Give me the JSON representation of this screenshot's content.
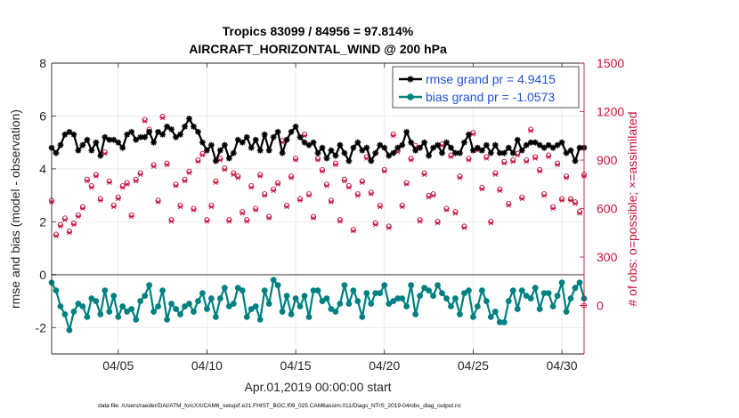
{
  "chart_data": {
    "type": "line",
    "title": "Tropics 83099 / 84956 = 97.814%",
    "subtitle": "AIRCRAFT_HORIZONTAL_WIND @ 200 hPa",
    "xlabel": "Apr.01,2019 00:00:00 start",
    "ylabel_left": "rmse and bias (model - observation)",
    "ylabel_right": "# of obs: o=possible; ×=assimilated",
    "footer": "data file: /Users/raeder/DAI/ATM_forcXX/CAM6_setup/f.e21.FHIST_BGC.f09_025.CAM6assim.011/Diags_NTrS_2019-04/obs_diag_output.nc",
    "x_tick_labels": [
      "04/05",
      "04/10",
      "04/15",
      "04/20",
      "04/25",
      "04/30"
    ],
    "x_tick_days": [
      5,
      10,
      15,
      20,
      25,
      30
    ],
    "xlim": [
      1.25,
      31.25
    ],
    "ylim_left": [
      -3,
      8
    ],
    "yticks_left": [
      -2,
      0,
      2,
      4,
      6,
      8
    ],
    "ylim_right": [
      -300,
      1500
    ],
    "yticks_right": [
      0,
      300,
      600,
      900,
      1200,
      1500
    ],
    "grid": true,
    "legend_position": "top-right",
    "x_days": [
      1.25,
      1.5,
      1.75,
      2.0,
      2.25,
      2.5,
      2.75,
      3.0,
      3.25,
      3.5,
      3.75,
      4.0,
      4.25,
      4.5,
      4.75,
      5.0,
      5.25,
      5.5,
      5.75,
      6.0,
      6.25,
      6.5,
      6.75,
      7.0,
      7.25,
      7.5,
      7.75,
      8.0,
      8.25,
      8.5,
      8.75,
      9.0,
      9.25,
      9.5,
      9.75,
      10.0,
      10.25,
      10.5,
      10.75,
      11.0,
      11.25,
      11.5,
      11.75,
      12.0,
      12.25,
      12.5,
      12.75,
      13.0,
      13.25,
      13.5,
      13.75,
      14.0,
      14.25,
      14.5,
      14.75,
      15.0,
      15.25,
      15.5,
      15.75,
      16.0,
      16.25,
      16.5,
      16.75,
      17.0,
      17.25,
      17.5,
      17.75,
      18.0,
      18.25,
      18.5,
      18.75,
      19.0,
      19.25,
      19.5,
      19.75,
      20.0,
      20.25,
      20.5,
      20.75,
      21.0,
      21.25,
      21.5,
      21.75,
      22.0,
      22.25,
      22.5,
      22.75,
      23.0,
      23.25,
      23.5,
      23.75,
      24.0,
      24.25,
      24.5,
      24.75,
      25.0,
      25.25,
      25.5,
      25.75,
      26.0,
      26.25,
      26.5,
      26.75,
      27.0,
      27.25,
      27.5,
      27.75,
      28.0,
      28.25,
      28.5,
      28.75,
      29.0,
      29.25,
      29.5,
      29.75,
      30.0,
      30.25,
      30.5,
      30.75,
      31.0,
      31.25
    ],
    "series": [
      {
        "name": "rmse grand pr = 4.9415",
        "axis": "left",
        "color": "#000000",
        "marker": "asterisk",
        "values": [
          4.8,
          4.6,
          4.9,
          5.3,
          5.4,
          5.3,
          4.7,
          4.9,
          5.1,
          4.7,
          5.0,
          4.5,
          5.2,
          5.1,
          5.1,
          5.0,
          4.8,
          5.3,
          5.4,
          5.1,
          5.2,
          5.2,
          5.4,
          5.0,
          5.4,
          5.3,
          5.6,
          5.5,
          5.2,
          5.3,
          5.6,
          5.9,
          5.6,
          5.4,
          5.0,
          4.7,
          4.9,
          4.3,
          4.7,
          4.9,
          4.4,
          4.6,
          5.1,
          5.0,
          5.2,
          4.8,
          5.1,
          4.7,
          5.3,
          4.7,
          5.2,
          5.4,
          4.6,
          5.1,
          5.4,
          5.6,
          5.2,
          5.0,
          4.9,
          5.0,
          4.6,
          4.8,
          4.4,
          4.7,
          4.5,
          4.9,
          4.6,
          4.3,
          4.8,
          5.0,
          4.7,
          4.8,
          4.3,
          4.6,
          4.9,
          4.8,
          4.5,
          4.6,
          4.8,
          4.9,
          5.4,
          5.0,
          4.7,
          4.8,
          5.0,
          4.5,
          4.8,
          4.9,
          4.6,
          5.0,
          4.8,
          4.6,
          4.6,
          5.0,
          5.3,
          4.7,
          4.8,
          4.7,
          4.9,
          4.6,
          4.9,
          4.6,
          4.6,
          4.8,
          4.6,
          5.1,
          4.7,
          4.9,
          5.0,
          5.0,
          4.9,
          4.8,
          4.9,
          4.8,
          4.9,
          5.0,
          4.6,
          4.7,
          4.3,
          4.8,
          4.8
        ]
      },
      {
        "name": "bias grand pr = -1.0573",
        "axis": "left",
        "color": "#008080",
        "marker": "circle",
        "values": [
          -0.3,
          -0.6,
          -1.2,
          -1.5,
          -2.1,
          -1.4,
          -1.1,
          -1.2,
          -1.6,
          -0.9,
          -1.0,
          -1.5,
          -0.6,
          -1.4,
          -0.8,
          -1.6,
          -1.2,
          -1.4,
          -1.3,
          -1.7,
          -1.0,
          -0.8,
          -0.4,
          -1.4,
          -1.2,
          -0.6,
          -1.7,
          -1.1,
          -1.3,
          -1.5,
          -1.2,
          -1.1,
          -1.4,
          -1.0,
          -0.7,
          -1.3,
          -0.9,
          -1.6,
          -0.9,
          -0.5,
          -1.2,
          -1.1,
          -0.5,
          -0.6,
          -1.6,
          -1.3,
          -1.2,
          -1.7,
          -0.6,
          -1.1,
          -0.2,
          -0.4,
          -1.4,
          -0.8,
          -1.5,
          -0.9,
          -1.2,
          -0.8,
          -1.6,
          -0.6,
          -0.6,
          -1.0,
          -0.9,
          -1.3,
          -1.4,
          -1.1,
          -0.4,
          -1.1,
          -0.6,
          -1.0,
          -1.6,
          -0.7,
          -1.1,
          -0.7,
          -0.7,
          -0.4,
          -1.1,
          -1.0,
          -0.9,
          -0.9,
          -1.2,
          -0.4,
          -1.5,
          -0.8,
          -0.5,
          -0.6,
          -0.8,
          -0.4,
          -0.7,
          -0.9,
          -1.2,
          -0.9,
          -1.5,
          -0.7,
          -0.6,
          -1.6,
          -1.2,
          -0.6,
          -1.0,
          -1.6,
          -1.4,
          -1.8,
          -1.8,
          -1.0,
          -0.6,
          -1.3,
          -0.6,
          -0.8,
          -0.9,
          -0.5,
          -1.3,
          -0.7,
          -0.7,
          -1.2,
          -0.8,
          -0.3,
          -1.4,
          -0.9,
          -0.5,
          -0.3,
          -0.9
        ]
      },
      {
        "name": "possible",
        "axis": "right",
        "color": "#c8103e",
        "marker": "open-circle",
        "values": [
          650,
          440,
          500,
          540,
          460,
          510,
          560,
          610,
          780,
          740,
          810,
          660,
          950,
          770,
          620,
          670,
          740,
          760,
          560,
          780,
          820,
          1150,
          1090,
          870,
          650,
          1170,
          880,
          530,
          750,
          620,
          780,
          830,
          600,
          900,
          940,
          530,
          620,
          770,
          910,
          850,
          530,
          820,
          800,
          580,
          530,
          740,
          600,
          810,
          690,
          550,
          720,
          760,
          1020,
          620,
          800,
          910,
          660,
          1060,
          690,
          550,
          910,
          840,
          750,
          650,
          880,
          530,
          780,
          740,
          470,
          690,
          770,
          920,
          700,
          510,
          620,
          840,
          490,
          1060,
          960,
          620,
          760,
          910,
          990,
          530,
          820,
          680,
          690,
          520,
          1000,
          600,
          930,
          580,
          800,
          490,
          910,
          1070,
          970,
          730,
          920,
          520,
          820,
          720,
          890,
          630,
          900,
          940,
          670,
          900,
          1090,
          920,
          840,
          690,
          930,
          610,
          880,
          660,
          800,
          660,
          640,
          580,
          810
        ]
      },
      {
        "name": "assimilated",
        "axis": "right",
        "color": "#c8103e",
        "marker": "cross",
        "values": [
          640,
          430,
          490,
          530,
          450,
          500,
          550,
          600,
          770,
          730,
          800,
          650,
          940,
          760,
          610,
          660,
          730,
          750,
          550,
          770,
          810,
          1140,
          1080,
          860,
          640,
          1160,
          870,
          520,
          740,
          610,
          770,
          820,
          590,
          890,
          930,
          520,
          610,
          760,
          900,
          840,
          520,
          810,
          790,
          570,
          520,
          730,
          590,
          800,
          680,
          540,
          710,
          750,
          1010,
          610,
          790,
          900,
          650,
          1050,
          680,
          540,
          900,
          830,
          740,
          640,
          870,
          520,
          770,
          730,
          460,
          680,
          760,
          910,
          690,
          500,
          610,
          830,
          480,
          1050,
          950,
          610,
          750,
          900,
          980,
          520,
          810,
          670,
          680,
          510,
          990,
          590,
          920,
          570,
          790,
          480,
          900,
          1060,
          960,
          720,
          910,
          510,
          810,
          710,
          880,
          620,
          890,
          930,
          660,
          890,
          1080,
          910,
          830,
          680,
          920,
          600,
          870,
          650,
          790,
          650,
          630,
          570,
          800
        ]
      }
    ],
    "zero_right": {
      "day": 31.25,
      "value": 0
    }
  }
}
